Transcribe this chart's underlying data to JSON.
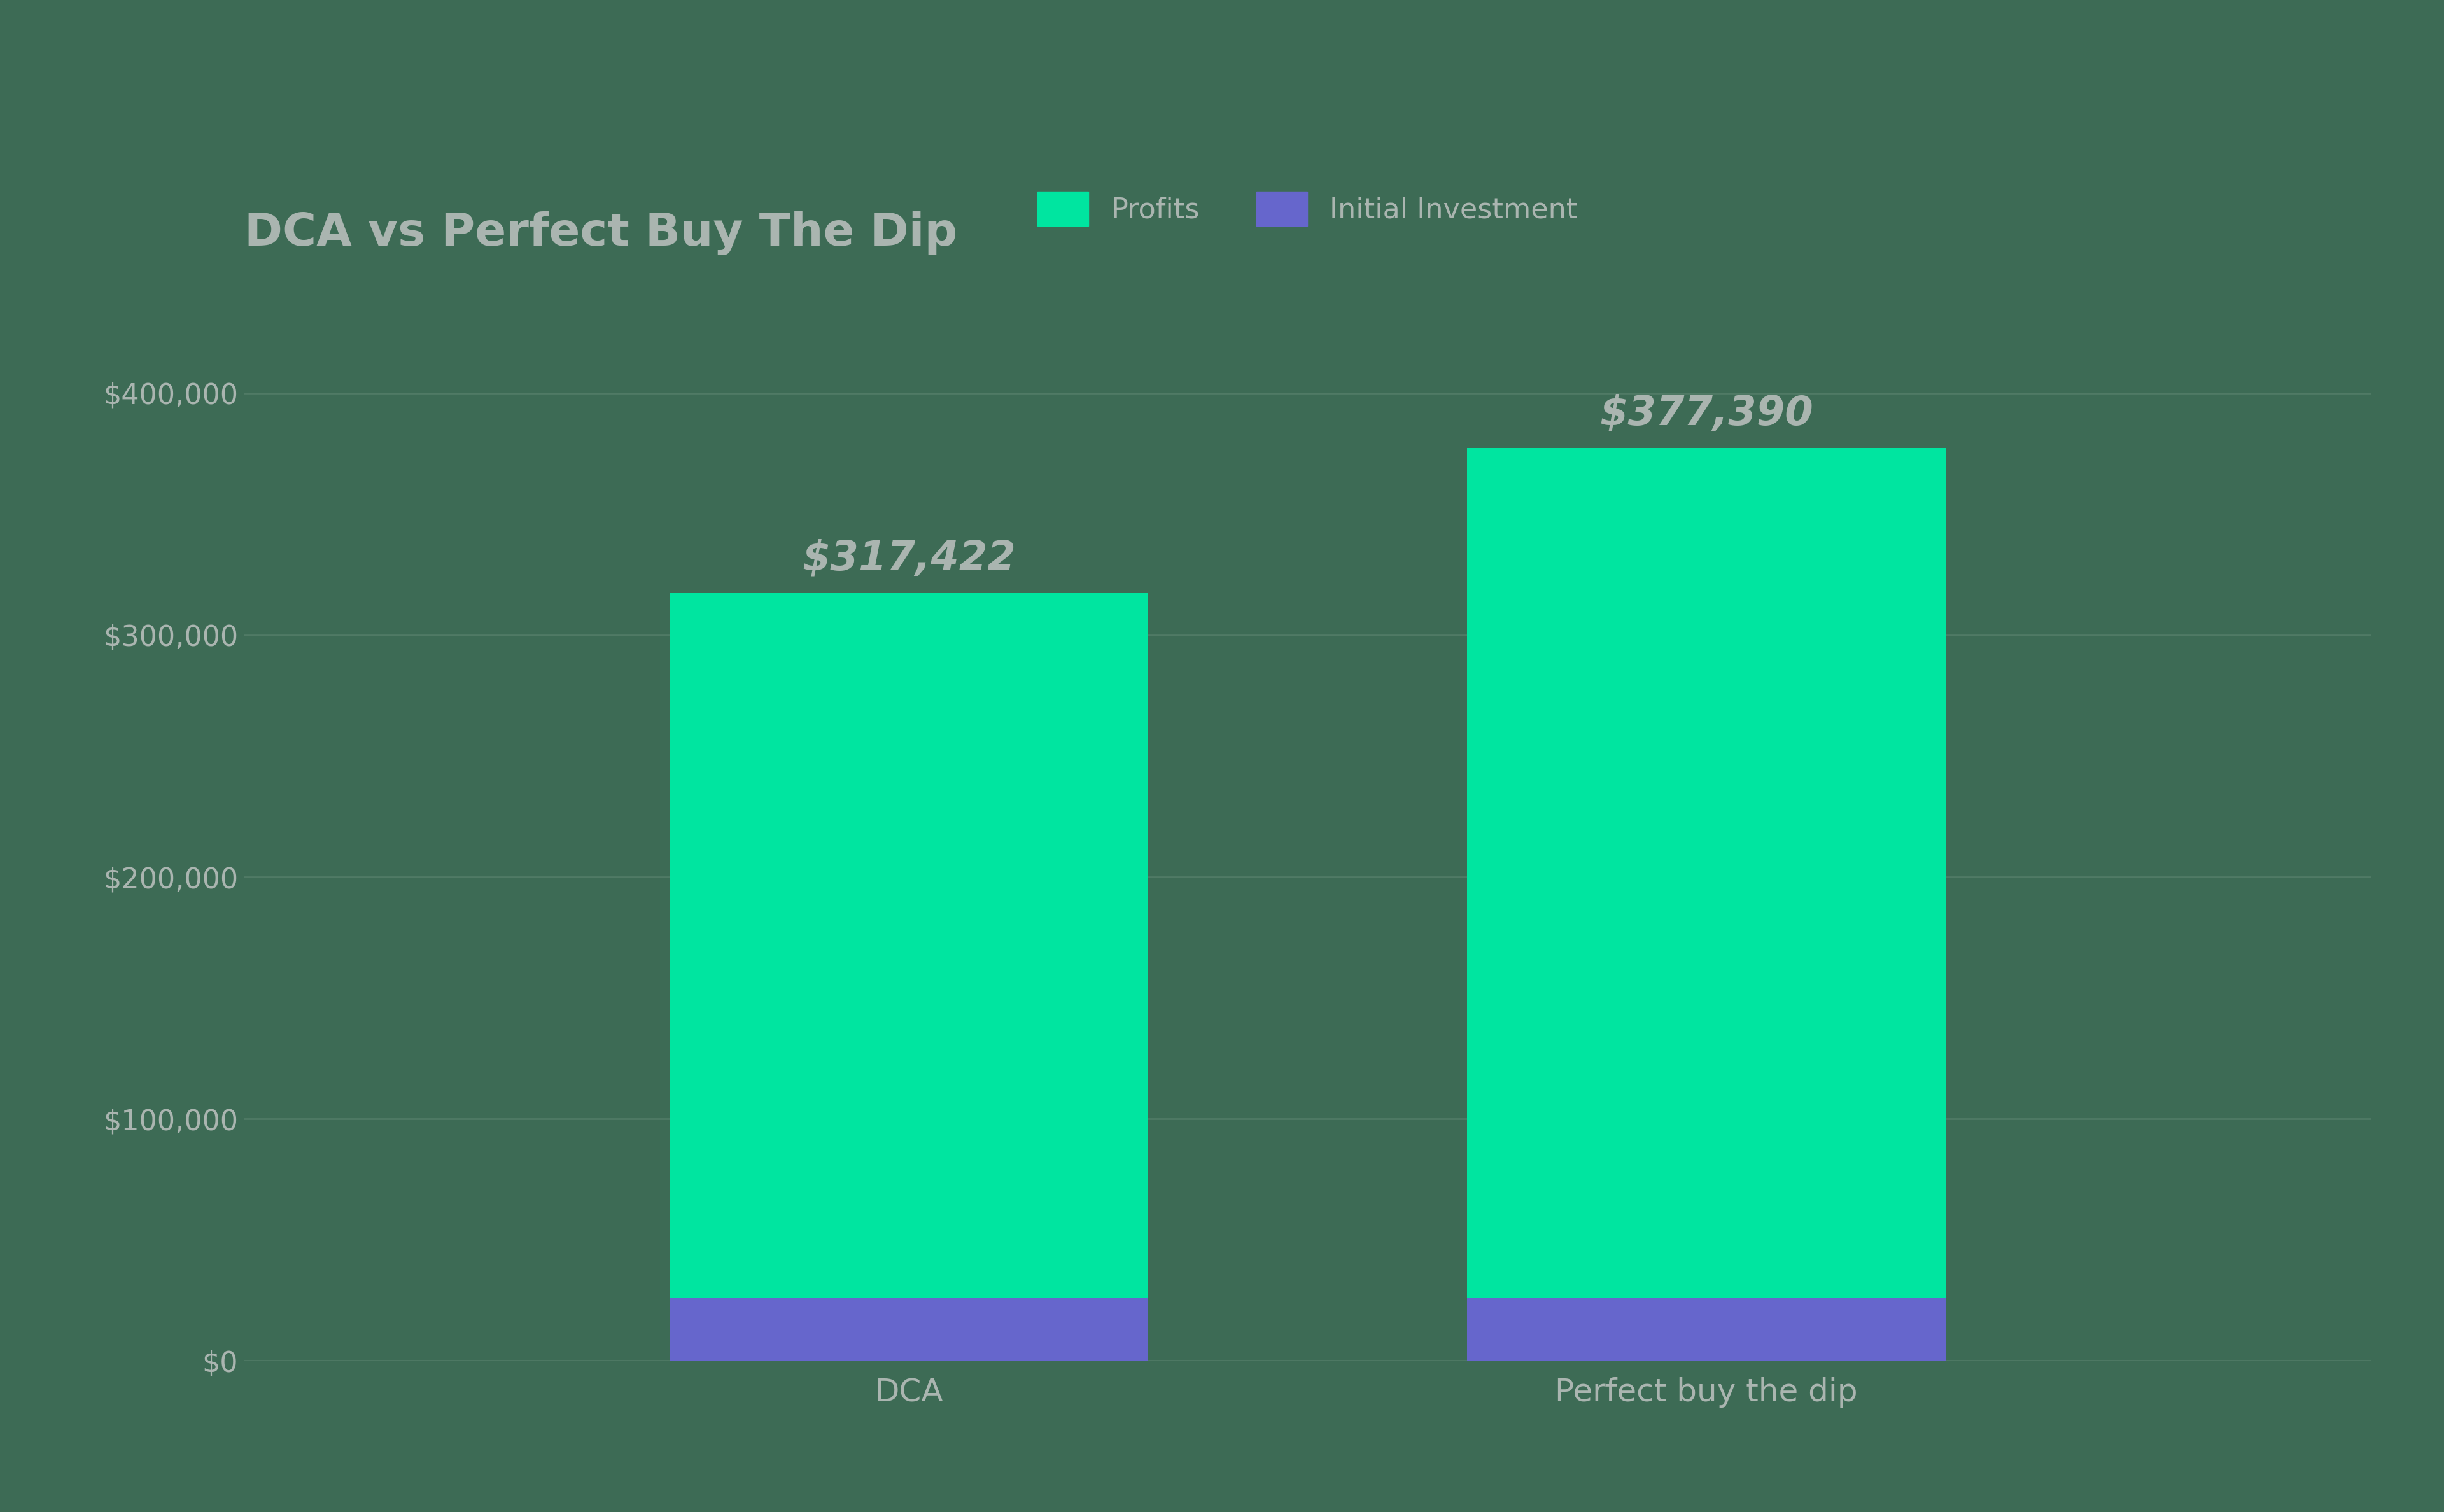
{
  "title": "DCA vs Perfect Buy The Dip",
  "categories": [
    "DCA",
    "Perfect buy the dip"
  ],
  "initial_investment": [
    26000,
    26000
  ],
  "profits": [
    291422,
    351390
  ],
  "total_values": [
    317422,
    377390
  ],
  "total_labels": [
    "$317,422",
    "$377,390"
  ],
  "profit_color": "#00e5a0",
  "investment_color": "#6666cc",
  "background_color": "#3d6b55",
  "text_color": "#aab5b0",
  "grid_color": "#507a65",
  "title_color": "#aab5b0",
  "label_color": "#aab5b0",
  "legend_profits_label": "Profits",
  "legend_investment_label": "Initial Investment",
  "ylim": [
    0,
    450000
  ],
  "yticks": [
    0,
    100000,
    200000,
    300000,
    400000
  ],
  "ytick_labels": [
    "$0",
    "$100,000",
    "$200,000",
    "$300,000",
    "$400,000"
  ],
  "bar_width": 0.18,
  "bar_positions": [
    0.35,
    0.65
  ],
  "title_fontsize": 52,
  "tick_fontsize": 32,
  "legend_fontsize": 32,
  "annotation_fontsize": 46,
  "xlabel_fontsize": 36
}
